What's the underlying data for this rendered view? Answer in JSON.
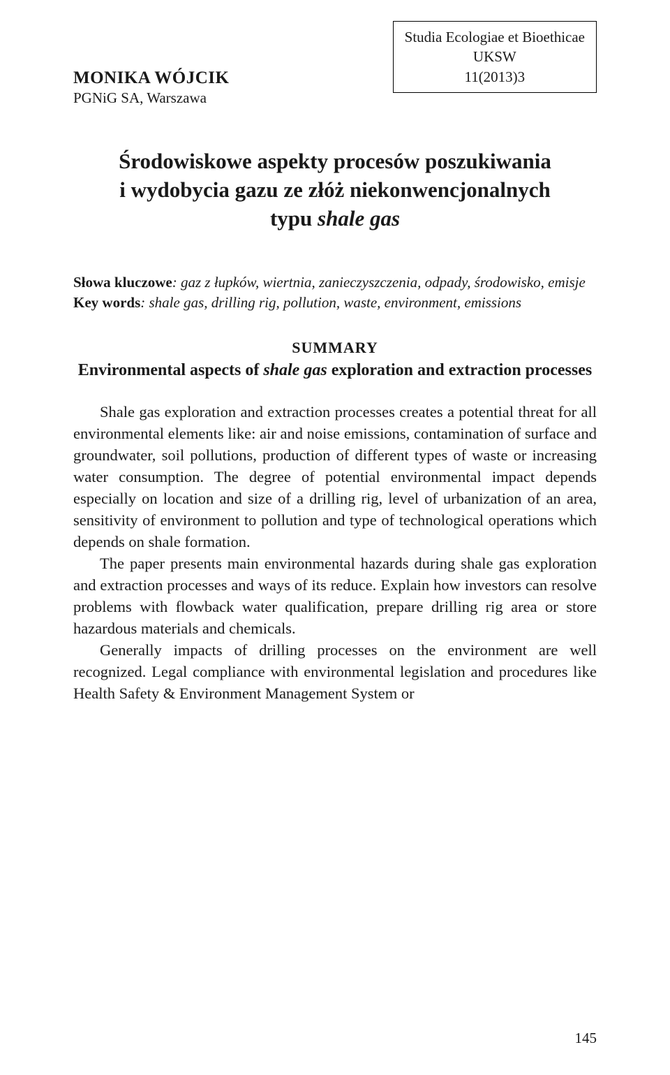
{
  "journal_box": {
    "line1": "Studia Ecologiae et Bioethicae",
    "line2": "UKSW",
    "line3": "11(2013)3"
  },
  "author": {
    "name": "MONIKA WÓJCIK",
    "affiliation": "PGNiG SA, Warszawa"
  },
  "title": {
    "line1": "Środowiskowe aspekty procesów poszukiwania",
    "line2": "i wydobycia gazu ze złóż niekonwencjonalnych",
    "line3_prefix": "typu ",
    "line3_italic": "shale gas"
  },
  "keywords": {
    "label_pl": "Słowa kluczowe",
    "text_pl": ": gaz z łupków, wiertnia, zanieczyszczenia, odpady, środowisko, emisje",
    "label_en": "Key words",
    "text_en": ": shale gas, drilling rig, pollution, waste, environment, emissions"
  },
  "summary": {
    "heading": "SUMMARY",
    "subtitle_prefix": "Environmental aspects of ",
    "subtitle_italic": "shale gas",
    "subtitle_suffix": " exploration and extraction processes"
  },
  "paragraphs": {
    "p1": "Shale gas exploration and extraction processes creates a potential threat for all environmental elements like: air and noise emissions, contamination of surface and groundwater, soil pollutions, production of different types of waste or increasing water consumption. The degree of potential environmental impact depends especially on location and size of a drilling rig, level of urbanization of an area, sensitivity of environment to pollution and type of technological operations which depends on shale formation.",
    "p2": "The paper presents main environmental hazards during shale gas exploration and extraction processes and ways of its reduce. Explain how investors can resolve problems with flowback water qualification, prepare drilling rig area or store hazardous materials and chemicals.",
    "p3": "Generally impacts of drilling processes on the environment are well recognized. Legal compliance with environmental legislation and procedures like Health Safety & Environment Management System or"
  },
  "page_number": "145",
  "colors": {
    "text": "#1a1a1a",
    "background": "#ffffff",
    "border": "#000000"
  },
  "typography": {
    "body_fontsize": 22.5,
    "title_fontsize": 31,
    "author_fontsize": 25,
    "keywords_fontsize": 21,
    "heading_fontsize": 22,
    "subtitle_fontsize": 24
  }
}
